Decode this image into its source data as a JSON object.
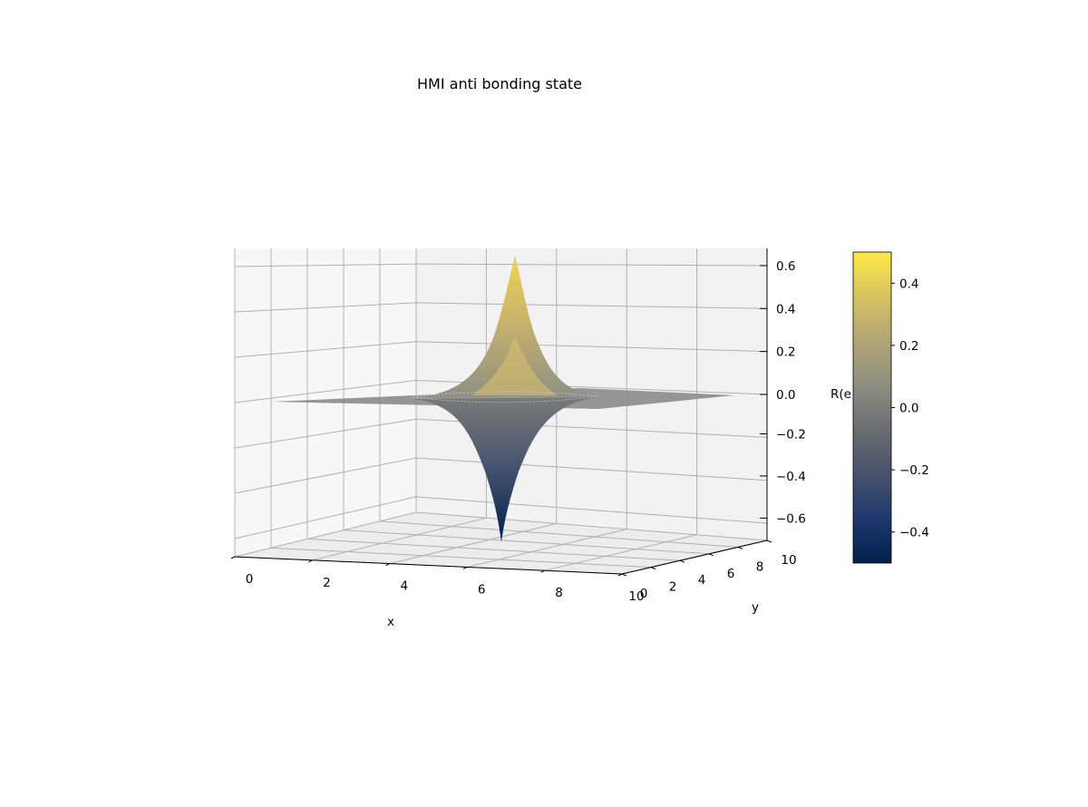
{
  "chart_data": {
    "type": "surface3d",
    "title": "HMI anti bonding state",
    "xlabel": "x",
    "ylabel": "y",
    "zlabel": "R(e",
    "colormap": "cividis",
    "x": {
      "range": [
        0,
        10
      ],
      "ticks": [
        "0",
        "2",
        "4",
        "6",
        "8",
        "10"
      ]
    },
    "y": {
      "range": [
        0,
        10
      ],
      "ticks": [
        "0",
        "2",
        "4",
        "6",
        "8",
        "10"
      ]
    },
    "z": {
      "range": [
        -0.68,
        0.68
      ],
      "ticks": [
        "−0.6",
        "−0.4",
        "−0.2",
        "0.0",
        "0.2",
        "0.4",
        "0.6"
      ]
    },
    "colorbar": {
      "range": [
        -0.5,
        0.5
      ],
      "ticks": [
        "−0.4",
        "−0.2",
        "0.0",
        "0.2",
        "0.4"
      ]
    },
    "surface": {
      "description_peak": 0.62,
      "description_trough": -0.62,
      "center": [
        5,
        5
      ]
    },
    "grid": true,
    "colors": {
      "pane_back": "#f2f2f2",
      "pane_side": "#f7f7f7",
      "grid": "#b0b0b0",
      "flat": "#8f8f8f"
    }
  }
}
